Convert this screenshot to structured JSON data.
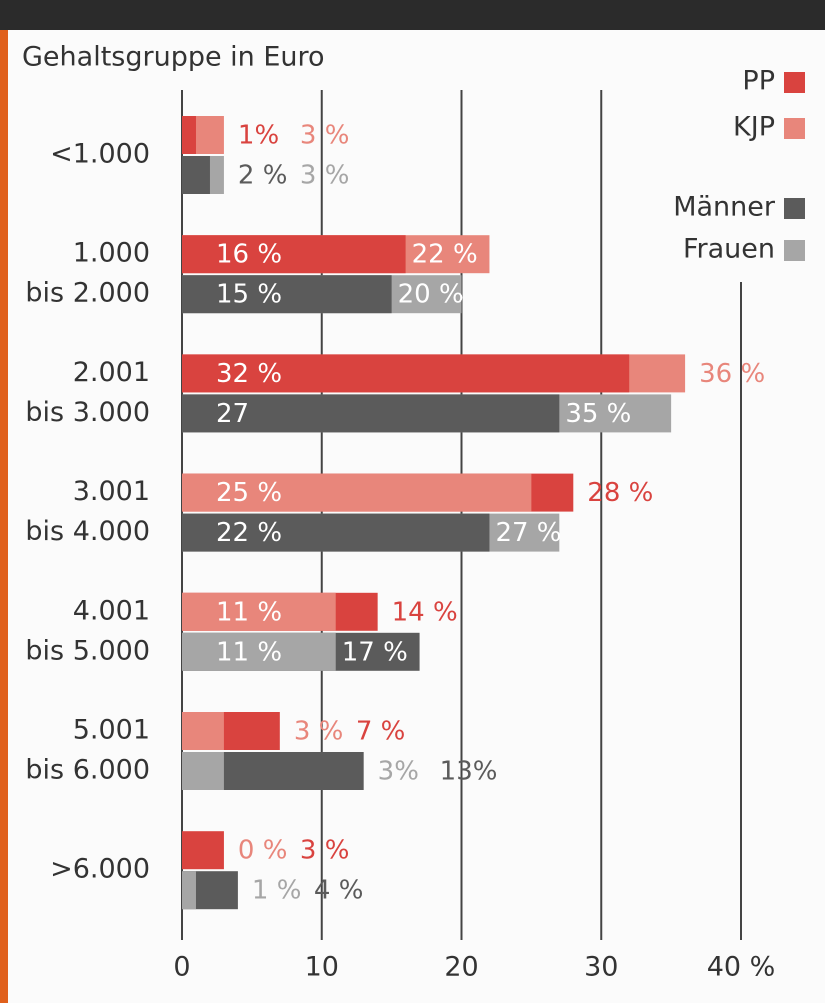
{
  "chart_data": {
    "type": "bar",
    "orientation": "horizontal",
    "overlap": true,
    "title": "Gehaltsgruppe in Euro",
    "categories": [
      [
        "<1.000"
      ],
      [
        "1.000",
        "bis 2.000"
      ],
      [
        "2.001",
        "bis 3.000"
      ],
      [
        "3.001",
        "bis 4.000"
      ],
      [
        "4.001",
        "bis 5.000"
      ],
      [
        "5.001",
        "bis 6.000"
      ],
      [
        ">6.000"
      ]
    ],
    "series": [
      {
        "name": "PP",
        "color": "#d9433f",
        "values": [
          1,
          16,
          32,
          28,
          14,
          7,
          3
        ],
        "value_labels": [
          "1%",
          "16 %",
          "32 %",
          "28 %",
          "14 %",
          "7 %",
          "3 %"
        ]
      },
      {
        "name": "KJP",
        "color": "#e8867b",
        "values": [
          3,
          22,
          36,
          25,
          11,
          3,
          0
        ],
        "value_labels": [
          "3 %",
          "22 %",
          "36 %",
          "25 %",
          "11 %",
          "3 %",
          "0 %"
        ]
      },
      {
        "name": "Männer",
        "color": "#5b5b5b",
        "values": [
          2,
          15,
          27,
          22,
          17,
          13,
          4
        ],
        "value_labels": [
          "2 %",
          "15 %",
          "27",
          "22 %",
          "17 %",
          "13%",
          "4 %"
        ]
      },
      {
        "name": "Frauen",
        "color": "#a6a6a6",
        "values": [
          3,
          20,
          35,
          27,
          11,
          3,
          1
        ],
        "value_labels": [
          "3 %",
          "20 %",
          "35 %",
          "27 %",
          "11 %",
          "3%",
          "1 %"
        ]
      }
    ],
    "xlim": [
      0,
      40
    ],
    "xticks": [
      0,
      10,
      20,
      30,
      {
        "value": 40,
        "label": "40 %"
      }
    ],
    "grid": true
  }
}
